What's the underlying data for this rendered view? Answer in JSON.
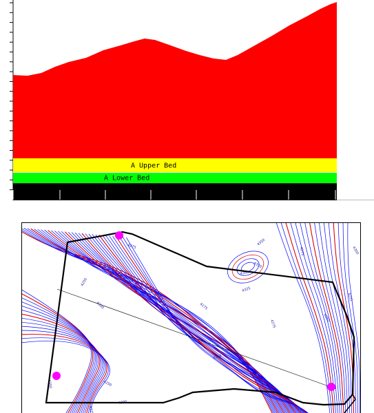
{
  "cross_section": {
    "beds": [
      {
        "label": "A Upper Bed",
        "color": "#ffff00"
      },
      {
        "label": "A Lower Bed",
        "color": "#00ff00"
      }
    ],
    "overburden_color": "#ff0000",
    "base_color": "#000000"
  },
  "contour_map": {
    "major_contour_color": "#dd0000",
    "minor_contour_color": "#0000ff",
    "boundary_color": "#000000",
    "drillhole_color": "#ff00ff",
    "contour_labels": [
      "4275",
      "4250",
      "4300",
      "4275",
      "4350",
      "4300",
      "4325",
      "4275",
      "4350",
      "4275",
      "4250",
      "4300",
      "4225",
      "4250",
      "4300",
      "4325",
      "4350",
      "4250"
    ]
  }
}
